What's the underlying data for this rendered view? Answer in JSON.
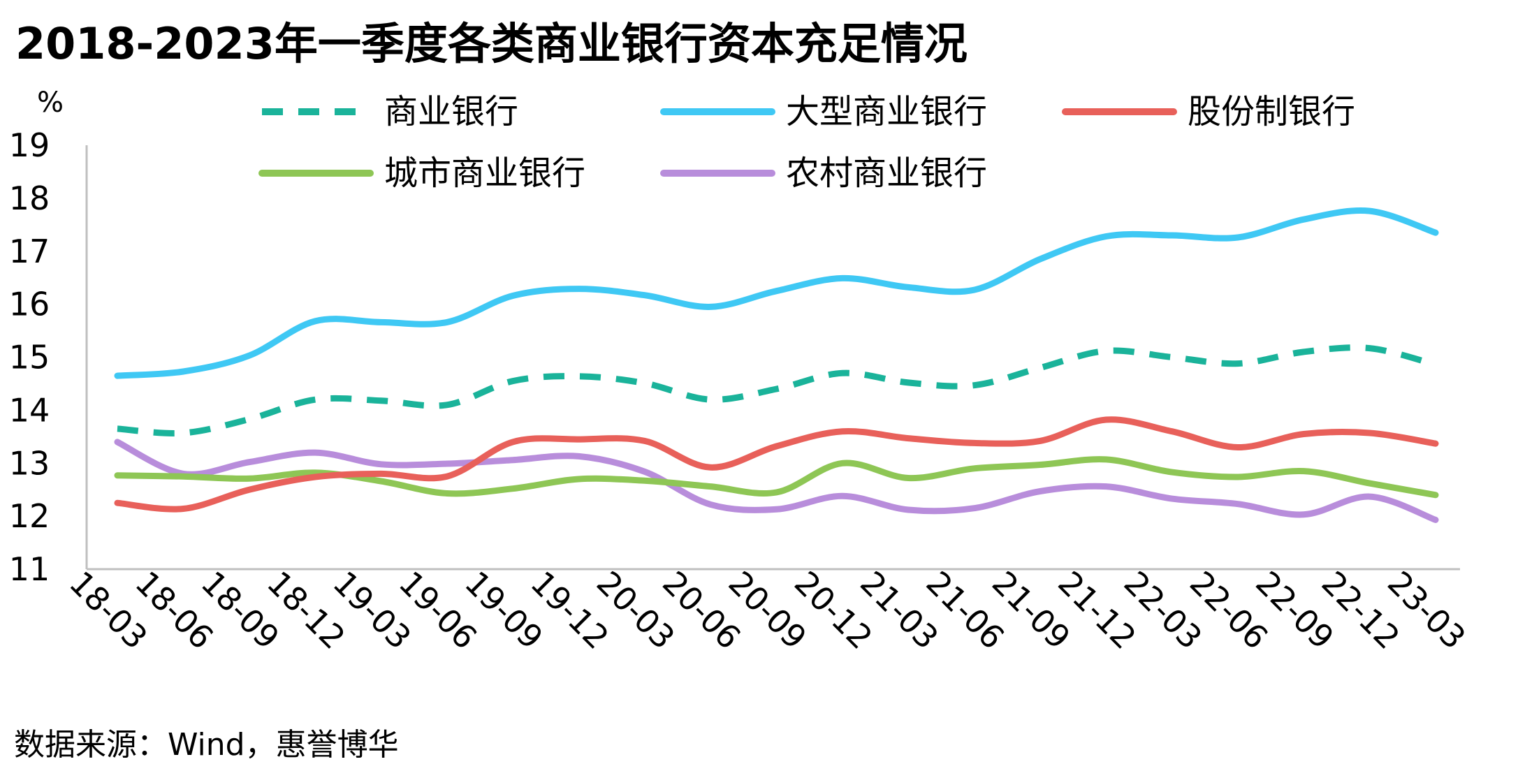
{
  "title": "2018-2023年一季度各类商业银行资本充足情况",
  "source": "数据来源：Wind，惠誉博华",
  "chart_data": {
    "type": "line",
    "title": "2018-2023年一季度各类商业银行资本充足情况",
    "xlabel": "",
    "ylabel": "%",
    "ylim": [
      11,
      19
    ],
    "yticks": [
      11,
      12,
      13,
      14,
      15,
      16,
      17,
      18,
      19
    ],
    "grid": false,
    "legend": "top",
    "categories": [
      "18-03",
      "18-06",
      "18-09",
      "18-12",
      "19-03",
      "19-06",
      "19-09",
      "19-12",
      "20-03",
      "20-06",
      "20-09",
      "20-12",
      "21-03",
      "21-06",
      "21-09",
      "21-12",
      "22-03",
      "22-06",
      "22-09",
      "22-12",
      "23-03"
    ],
    "series": [
      {
        "name": "商业银行",
        "color": "#1ab39a",
        "dash": true,
        "values": [
          13.65,
          13.57,
          13.83,
          14.2,
          14.18,
          14.1,
          14.55,
          14.64,
          14.51,
          14.2,
          14.4,
          14.7,
          14.52,
          14.47,
          14.8,
          15.12,
          15.0,
          14.88,
          15.1,
          15.17,
          14.86
        ]
      },
      {
        "name": "大型商业银行",
        "color": "#3fc8f4",
        "dash": false,
        "values": [
          14.65,
          14.73,
          15.03,
          15.68,
          15.66,
          15.66,
          16.16,
          16.29,
          16.17,
          15.95,
          16.25,
          16.49,
          16.32,
          16.27,
          16.85,
          17.28,
          17.3,
          17.26,
          17.6,
          17.76,
          17.35
        ]
      },
      {
        "name": "股份制银行",
        "color": "#e8605a",
        "dash": false,
        "values": [
          12.25,
          12.14,
          12.5,
          12.74,
          12.8,
          12.75,
          13.4,
          13.45,
          13.42,
          12.92,
          13.32,
          13.6,
          13.47,
          13.38,
          13.42,
          13.82,
          13.6,
          13.3,
          13.55,
          13.57,
          13.37
        ]
      },
      {
        "name": "城市商业银行",
        "color": "#8ec655",
        "dash": false,
        "values": [
          12.77,
          12.75,
          12.71,
          12.82,
          12.66,
          12.43,
          12.52,
          12.7,
          12.67,
          12.56,
          12.45,
          13.0,
          12.72,
          12.9,
          12.97,
          13.07,
          12.83,
          12.74,
          12.85,
          12.62,
          12.4
        ]
      },
      {
        "name": "农村商业银行",
        "color": "#b88ddb",
        "dash": false,
        "values": [
          13.4,
          12.8,
          13.02,
          13.2,
          12.98,
          12.99,
          13.06,
          13.13,
          12.84,
          12.22,
          12.13,
          12.38,
          12.12,
          12.15,
          12.47,
          12.56,
          12.33,
          12.23,
          12.03,
          12.37,
          11.93
        ]
      }
    ]
  }
}
